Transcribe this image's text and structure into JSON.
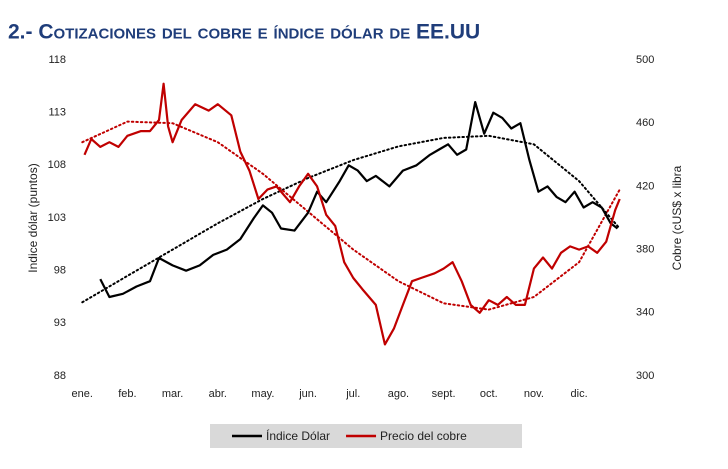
{
  "chart_data": {
    "type": "line",
    "title": "2.- Cotizaciones del cobre e índice dólar de EE.UU",
    "y_label": "Indice dólar (puntos)",
    "y2_label": "Cobre (cUS$ x libra",
    "xlim": [
      -0.05,
      11.95
    ],
    "xticks": [
      {
        "value": 0,
        "label": "ene."
      },
      {
        "value": 1,
        "label": "feb."
      },
      {
        "value": 2,
        "label": "mar."
      },
      {
        "value": 3,
        "label": "abr."
      },
      {
        "value": 4,
        "label": "may."
      },
      {
        "value": 5,
        "label": "jun."
      },
      {
        "value": 6,
        "label": "jul."
      },
      {
        "value": 7,
        "label": "ago."
      },
      {
        "value": 8,
        "label": "sept."
      },
      {
        "value": 9,
        "label": "oct."
      },
      {
        "value": 10,
        "label": "nov."
      },
      {
        "value": 11,
        "label": "dic."
      }
    ],
    "ylim": [
      88,
      118
    ],
    "yticks": [
      88,
      93,
      98,
      103,
      108,
      113,
      118
    ],
    "y2lim": [
      300,
      500
    ],
    "y2ticks": [
      300,
      340,
      380,
      420,
      460,
      500
    ],
    "series": [
      {
        "name": "Índice Dólar",
        "color": "#000000",
        "axis": "y",
        "x": [
          0.4,
          0.6,
          0.9,
          1.2,
          1.5,
          1.7,
          2.0,
          2.3,
          2.6,
          2.9,
          3.2,
          3.5,
          3.8,
          4.0,
          4.2,
          4.4,
          4.7,
          5.0,
          5.2,
          5.4,
          5.7,
          5.9,
          6.1,
          6.3,
          6.5,
          6.8,
          7.1,
          7.4,
          7.7,
          7.9,
          8.1,
          8.3,
          8.5,
          8.7,
          8.9,
          9.1,
          9.3,
          9.5,
          9.7,
          9.9,
          10.1,
          10.3,
          10.5,
          10.7,
          10.9,
          11.1,
          11.3,
          11.5,
          11.7,
          11.85
        ],
        "values": [
          97.2,
          95.5,
          95.8,
          96.5,
          97.0,
          99.2,
          98.5,
          98.0,
          98.5,
          99.5,
          100.0,
          101.0,
          103.0,
          104.2,
          103.5,
          102.0,
          101.8,
          103.5,
          105.5,
          104.5,
          106.5,
          108.0,
          107.5,
          106.5,
          107.0,
          106.0,
          107.5,
          108.0,
          109.0,
          109.5,
          110.0,
          109.0,
          109.5,
          114.0,
          111.0,
          113.0,
          112.5,
          111.5,
          112.0,
          108.5,
          105.5,
          106.0,
          105.0,
          104.5,
          105.5,
          104.0,
          104.5,
          104.0,
          102.5,
          102.0
        ]
      },
      {
        "name": "Precio del cobre",
        "color": "#c00000",
        "axis": "y2",
        "x": [
          0.05,
          0.2,
          0.4,
          0.6,
          0.8,
          1.0,
          1.3,
          1.5,
          1.7,
          1.8,
          1.9,
          2.0,
          2.2,
          2.5,
          2.8,
          3.0,
          3.3,
          3.5,
          3.7,
          3.9,
          4.1,
          4.3,
          4.6,
          4.8,
          5.0,
          5.2,
          5.4,
          5.6,
          5.8,
          6.0,
          6.2,
          6.5,
          6.7,
          6.9,
          7.1,
          7.3,
          7.5,
          7.8,
          8.0,
          8.2,
          8.4,
          8.6,
          8.8,
          9.0,
          9.2,
          9.4,
          9.6,
          9.8,
          10.0,
          10.2,
          10.4,
          10.6,
          10.8,
          11.0,
          11.2,
          11.4,
          11.6,
          11.8,
          11.9
        ],
        "values": [
          440,
          450,
          445,
          448,
          445,
          452,
          455,
          455,
          462,
          485,
          458,
          448,
          462,
          472,
          468,
          472,
          465,
          442,
          430,
          412,
          418,
          420,
          410,
          420,
          428,
          420,
          402,
          395,
          372,
          362,
          355,
          345,
          320,
          330,
          345,
          360,
          362,
          365,
          368,
          372,
          360,
          345,
          340,
          348,
          345,
          350,
          345,
          345,
          368,
          375,
          368,
          378,
          382,
          380,
          382,
          378,
          385,
          405,
          412
        ]
      }
    ],
    "trendlines": [
      {
        "color": "#000000",
        "axis": "y",
        "x": [
          0,
          1,
          2,
          3,
          4,
          5,
          6,
          7,
          8,
          9,
          10,
          11,
          11.9
        ],
        "values": [
          95.0,
          97.5,
          100.0,
          102.5,
          104.8,
          106.8,
          108.5,
          109.8,
          110.6,
          110.8,
          110.0,
          106.5,
          102.0
        ]
      },
      {
        "color": "#c00000",
        "axis": "y2",
        "x": [
          0,
          1,
          2,
          3,
          4,
          5,
          6,
          7,
          8,
          9,
          10,
          11,
          11.9
        ],
        "values": [
          448,
          461,
          460,
          448,
          428,
          404,
          380,
          360,
          346,
          342,
          350,
          372,
          418
        ]
      }
    ]
  }
}
